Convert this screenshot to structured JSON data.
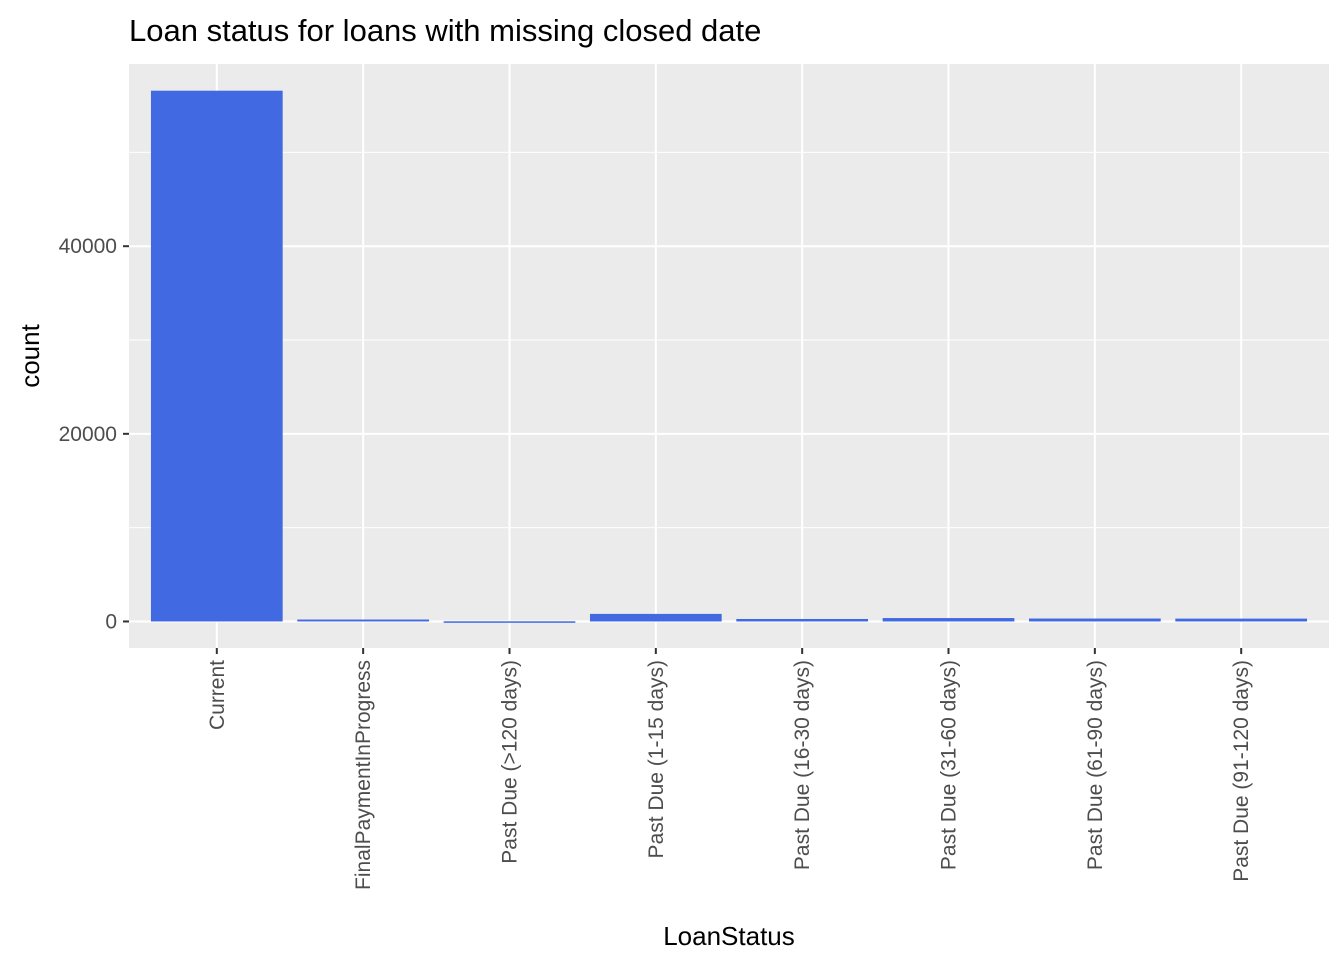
{
  "chart_data": {
    "type": "bar",
    "title": "Loan status for loans with missing closed date",
    "xlabel": "LoanStatus",
    "ylabel": "count",
    "categories": [
      "Current",
      "FinalPaymentInProgress",
      "Past Due (>120 days)",
      "Past Due (1-15 days)",
      "Past Due (16-30 days)",
      "Past Due (31-60 days)",
      "Past Due (61-90 days)",
      "Past Due (91-120 days)"
    ],
    "values": [
      56576,
      205,
      16,
      806,
      265,
      363,
      313,
      304
    ],
    "yticks": [
      0,
      20000,
      40000
    ],
    "ytick_labels": [
      "0",
      "20000",
      "40000"
    ],
    "ylim": [
      -2829,
      59421
    ],
    "grid": true,
    "bar_color": "#4169E1",
    "panel_color": "#EBEBEB",
    "grid_color": "#FFFFFF"
  }
}
